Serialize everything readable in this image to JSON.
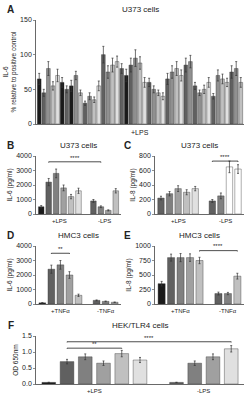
{
  "chart_data": [
    {
      "type": "bar",
      "panel_label": "A",
      "title": "U373 cells",
      "xlabel": "+LPS",
      "ylabel": "IL-6\n% relative to positive control",
      "values": [
        65,
        45,
        80,
        55,
        70,
        60,
        50,
        55,
        70,
        45,
        30,
        40,
        35,
        55,
        100,
        75,
        85,
        90,
        80,
        70,
        85,
        95,
        88,
        60,
        60,
        50,
        45,
        40,
        65,
        75,
        80,
        70,
        85,
        90,
        55,
        45,
        50,
        60,
        40,
        70,
        65,
        60,
        75,
        80,
        60
      ],
      "errors": [
        8,
        5,
        10,
        6,
        9,
        7,
        5,
        8,
        6,
        4,
        3,
        5,
        4,
        7,
        12,
        9,
        10,
        8,
        7,
        9,
        10,
        12,
        9,
        7,
        6,
        5,
        4,
        5,
        8,
        9,
        10,
        8,
        10,
        9,
        5,
        4,
        6,
        7,
        4,
        8,
        7,
        6,
        9,
        10,
        7
      ],
      "colors": [
        "#1a1a1a",
        "#606060",
        "#909090",
        "#c0c0c0",
        "#e0e0e0",
        "#1a1a1a",
        "#606060",
        "#1a1a1a",
        "#909090",
        "#c0c0c0",
        "#606060",
        "#909090",
        "#c0c0c0",
        "#e0e0e0",
        "#606060",
        "#909090",
        "#c0c0c0",
        "#e0e0e0",
        "#606060",
        "#1a1a1a",
        "#606060",
        "#909090",
        "#c0c0c0",
        "#e0e0e0",
        "#606060",
        "#909090",
        "#c0c0c0",
        "#e0e0e0",
        "#606060",
        "#909090",
        "#c0c0c0",
        "#e0e0e0",
        "#606060",
        "#909090",
        "#606060",
        "#909090",
        "#c0c0c0",
        "#e0e0e0",
        "#606060",
        "#909090",
        "#c0c0c0",
        "#e0e0e0",
        "#606060",
        "#909090",
        "#c0c0c0"
      ],
      "ylim": [
        0,
        150
      ],
      "yticks": [
        0,
        50,
        100,
        150
      ],
      "grid": false,
      "tick_labels": "y"
    },
    {
      "type": "bar",
      "panel_label": "B",
      "title": "U373 cells",
      "ylabel": "IL-6 (pg/ml)",
      "series": [
        {
          "name": "+LPS",
          "values": [
            500,
            2200,
            2800,
            1800,
            1200,
            1600
          ],
          "errors": [
            80,
            250,
            300,
            200,
            150,
            180
          ],
          "colors": [
            "#1a1a1a",
            "#606060",
            "#808080",
            "#a0a0a0",
            "#c0c0c0",
            "#e0e0e0"
          ]
        },
        {
          "name": "-LPS",
          "values": [
            900,
            500,
            250,
            1600
          ],
          "errors": [
            100,
            60,
            40,
            150
          ],
          "colors": [
            "#606060",
            "#808080",
            "#a0a0a0",
            "#c0c0c0"
          ]
        }
      ],
      "annotations": [
        {
          "text": "****",
          "y": 3600,
          "from": [
            0,
            1
          ],
          "to": [
            1,
            1
          ]
        }
      ],
      "ylim": [
        0,
        4000
      ],
      "yticks": [
        0,
        1000,
        2000,
        3000,
        4000
      ],
      "grid": false,
      "tick_labels": "y"
    },
    {
      "type": "bar",
      "panel_label": "C",
      "title": "U373 cells",
      "ylabel": "IL-8 (pg/ml)",
      "series": [
        {
          "name": "+LPS",
          "values": [
            220,
            280,
            350,
            300,
            350
          ],
          "errors": [
            25,
            30,
            40,
            35,
            30
          ],
          "colors": [
            "#606060",
            "#808080",
            "#a0a0a0",
            "#c0c0c0",
            "#e0e0e0"
          ]
        },
        {
          "name": "-LPS",
          "values": [
            180,
            250,
            650,
            620
          ],
          "errors": [
            20,
            40,
            80,
            60
          ],
          "colors": [
            "#606060",
            "#808080",
            "#ffffff",
            "#ffffff"
          ]
        }
      ],
      "annotations": [
        {
          "text": "****",
          "y": 730,
          "from": [
            1,
            0
          ],
          "to": [
            1,
            3
          ]
        }
      ],
      "ylim": [
        0,
        800
      ],
      "yticks": [
        0,
        200,
        400,
        600,
        800
      ],
      "grid": false,
      "tick_labels": "y"
    },
    {
      "type": "bar",
      "panel_label": "D",
      "title": "HMC3 cells",
      "ylabel": "IL-6 (pg/ml)",
      "series": [
        {
          "name": "+TNFα",
          "values": [
            80,
            2400,
            2700,
            2000,
            600
          ],
          "errors": [
            10,
            280,
            300,
            230,
            80
          ],
          "colors": [
            "#1a1a1a",
            "#606060",
            "#808080",
            "#a0a0a0",
            "#c0c0c0"
          ]
        },
        {
          "name": "-TNFα",
          "values": [
            250,
            180,
            120
          ],
          "errors": [
            30,
            25,
            15
          ],
          "colors": [
            "#606060",
            "#808080",
            "#a0a0a0"
          ]
        }
      ],
      "annotations": [
        {
          "text": "**",
          "y": 3500,
          "from": [
            0,
            1
          ],
          "to": [
            0,
            3
          ]
        }
      ],
      "ylim": [
        0,
        4000
      ],
      "yticks": [
        0,
        1000,
        2000,
        3000,
        4000
      ],
      "grid": false,
      "tick_labels": "y"
    },
    {
      "type": "bar",
      "panel_label": "E",
      "title": "HMC3 cells",
      "ylabel": "IL-8 (pg/ml)",
      "series": [
        {
          "name": "+TNFα",
          "values": [
            350,
            800,
            800,
            800,
            750
          ],
          "errors": [
            40,
            60,
            70,
            65,
            55
          ],
          "colors": [
            "#1a1a1a",
            "#606060",
            "#808080",
            "#a0a0a0",
            "#c0c0c0"
          ]
        },
        {
          "name": "-TNFα",
          "values": [
            180,
            180,
            480
          ],
          "errors": [
            25,
            20,
            50
          ],
          "colors": [
            "#606060",
            "#808080",
            "#c0c0c0"
          ]
        }
      ],
      "annotations": [
        {
          "text": "****",
          "y": 920,
          "from": [
            0,
            4
          ],
          "to": [
            1,
            2
          ]
        }
      ],
      "ylim": [
        0,
        1000
      ],
      "yticks": [
        0,
        250,
        500,
        750,
        1000
      ],
      "grid": false,
      "tick_labels": "y"
    },
    {
      "type": "bar",
      "panel_label": "F",
      "title": "HEK/TLR4 cells",
      "ylabel": "OD 650nm",
      "series": [
        {
          "name": "+LPS",
          "values": [
            0.05,
            0.7,
            0.85,
            0.65,
            0.95,
            0.75
          ],
          "errors": [
            0.005,
            0.07,
            0.09,
            0.07,
            0.1,
            0.08
          ],
          "colors": [
            "#1a1a1a",
            "#606060",
            "#808080",
            "#a0a0a0",
            "#c0c0c0",
            "#e0e0e0"
          ]
        },
        {
          "name": "-LPS",
          "values": [
            0.05,
            0.65,
            0.85,
            1.1
          ],
          "errors": [
            0.005,
            0.07,
            0.09,
            0.1
          ],
          "colors": [
            "#606060",
            "#808080",
            "#a0a0a0",
            "#e0e0e0"
          ]
        }
      ],
      "annotations": [
        {
          "text": "**",
          "y": 1.12,
          "from": [
            0,
            1
          ],
          "to": [
            0,
            4
          ]
        },
        {
          "text": "****",
          "y": 1.32,
          "from": [
            0,
            1
          ],
          "to": [
            1,
            3
          ]
        }
      ],
      "ylim": [
        0,
        1.5
      ],
      "yticks": [
        {
          "value": 0,
          "label": "0.0"
        },
        0.5,
        {
          "value": 1.0,
          "label": "1.0"
        },
        1.5
      ],
      "grid": false,
      "tick_labels": "y"
    }
  ]
}
